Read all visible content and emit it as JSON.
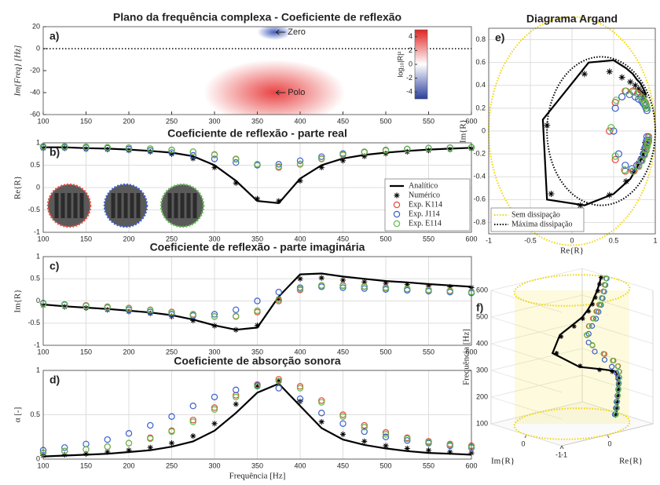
{
  "chart_data": [
    {
      "type": "heatmap",
      "title": "Plano da frequência complexa - Coeficiente de reflexão",
      "panel": "a)",
      "ylabel": "Im{Freq} [Hz]",
      "xlim": [
        100,
        600
      ],
      "xticks": [
        100,
        150,
        200,
        250,
        300,
        350,
        400,
        450,
        500,
        550,
        600
      ],
      "ylim": [
        -60,
        20
      ],
      "yticks": [
        -60,
        -40,
        -20,
        0,
        20
      ],
      "grid": false,
      "zero_line": true,
      "annotations": [
        {
          "text": "Zero",
          "x": 370,
          "y": 15,
          "color": "#3a55b8"
        },
        {
          "text": "Polo",
          "x": 370,
          "y": -40,
          "color": "#e83a3a"
        }
      ],
      "colorbar": {
        "label": "log₁₀|R|²",
        "lim": [
          -5,
          5
        ],
        "ticks": [
          4,
          2,
          0,
          -2,
          -4
        ],
        "colors": [
          "#2a3f9e",
          "#ffffff",
          "#e02424"
        ]
      }
    },
    {
      "type": "line",
      "title": "Coeficiente de reflexão - parte real",
      "panel": "b)",
      "ylabel": "Re{R}",
      "x": [
        100,
        125,
        150,
        175,
        200,
        225,
        250,
        275,
        300,
        325,
        350,
        375,
        400,
        425,
        450,
        475,
        500,
        525,
        550,
        575,
        600
      ],
      "xlim": [
        100,
        600
      ],
      "xticks": [
        100,
        150,
        200,
        250,
        300,
        350,
        400,
        450,
        500,
        550,
        600
      ],
      "ylim": [
        -1,
        1
      ],
      "yticks": [
        -1,
        -0.5,
        0,
        0.5,
        1
      ],
      "grid": true,
      "legend": "lower right",
      "series": [
        {
          "name": "Analítico",
          "color": "#000000",
          "style": "line",
          "values": [
            0.9,
            0.9,
            0.88,
            0.87,
            0.85,
            0.82,
            0.78,
            0.7,
            0.5,
            0.15,
            -0.3,
            -0.35,
            0.2,
            0.5,
            0.65,
            0.73,
            0.78,
            0.82,
            0.85,
            0.87,
            0.89
          ]
        },
        {
          "name": "Numérico",
          "color": "#000000",
          "style": "asterisk",
          "values": [
            0.88,
            0.88,
            0.86,
            0.85,
            0.83,
            0.8,
            0.75,
            0.65,
            0.45,
            0.1,
            -0.25,
            -0.3,
            0.15,
            0.45,
            0.6,
            0.7,
            0.76,
            0.8,
            0.83,
            0.85,
            0.87
          ]
        },
        {
          "name": "Exp. K114",
          "color": "#e8493a",
          "style": "circle",
          "values": [
            0.92,
            0.92,
            0.91,
            0.9,
            0.89,
            0.87,
            0.84,
            0.8,
            0.74,
            0.64,
            0.52,
            0.45,
            0.52,
            0.64,
            0.73,
            0.79,
            0.83,
            0.86,
            0.88,
            0.89,
            0.9
          ]
        },
        {
          "name": "Exp. J114",
          "color": "#3a5fcd",
          "style": "circle",
          "values": [
            0.9,
            0.9,
            0.89,
            0.88,
            0.86,
            0.83,
            0.78,
            0.72,
            0.64,
            0.56,
            0.5,
            0.52,
            0.6,
            0.69,
            0.76,
            0.8,
            0.84,
            0.86,
            0.88,
            0.89,
            0.9
          ]
        },
        {
          "name": "Exp. E114",
          "color": "#5cbf4a",
          "style": "circle",
          "values": [
            0.92,
            0.92,
            0.91,
            0.9,
            0.89,
            0.87,
            0.84,
            0.8,
            0.73,
            0.63,
            0.52,
            0.47,
            0.53,
            0.65,
            0.74,
            0.8,
            0.84,
            0.86,
            0.88,
            0.89,
            0.9
          ]
        }
      ]
    },
    {
      "type": "line",
      "title": "Coeficiente de reflexão - parte imaginária",
      "panel": "c)",
      "ylabel": "Im{R}",
      "x": [
        100,
        125,
        150,
        175,
        200,
        225,
        250,
        275,
        300,
        325,
        350,
        375,
        400,
        425,
        450,
        475,
        500,
        525,
        550,
        575,
        600
      ],
      "xlim": [
        100,
        600
      ],
      "xticks": [
        100,
        150,
        200,
        250,
        300,
        350,
        400,
        450,
        500,
        550,
        600
      ],
      "ylim": [
        -1,
        1
      ],
      "yticks": [
        -1,
        -0.5,
        0,
        0.5,
        1
      ],
      "grid": true,
      "series": [
        {
          "color": "#000000",
          "style": "line",
          "values": [
            -0.08,
            -0.12,
            -0.15,
            -0.18,
            -0.22,
            -0.26,
            -0.32,
            -0.42,
            -0.55,
            -0.65,
            -0.6,
            0.1,
            0.6,
            0.62,
            0.55,
            0.5,
            0.45,
            0.42,
            0.38,
            0.35,
            0.32
          ]
        },
        {
          "color": "#000000",
          "style": "asterisk",
          "values": [
            -0.1,
            -0.13,
            -0.16,
            -0.2,
            -0.24,
            -0.28,
            -0.35,
            -0.44,
            -0.56,
            -0.65,
            -0.55,
            0.05,
            0.5,
            0.52,
            0.47,
            0.43,
            0.4,
            0.37,
            0.34,
            0.32,
            0.3
          ]
        },
        {
          "color": "#e8493a",
          "style": "circle",
          "values": [
            -0.05,
            -0.08,
            -0.1,
            -0.13,
            -0.16,
            -0.2,
            -0.25,
            -0.3,
            -0.35,
            -0.35,
            -0.25,
            0,
            0.25,
            0.35,
            0.35,
            0.33,
            0.3,
            0.27,
            0.25,
            0.23,
            0.2
          ]
        },
        {
          "color": "#3a5fcd",
          "style": "circle",
          "values": [
            -0.05,
            -0.08,
            -0.11,
            -0.15,
            -0.2,
            -0.25,
            -0.3,
            -0.33,
            -0.3,
            -0.2,
            0,
            0.2,
            0.3,
            0.32,
            0.3,
            0.28,
            0.26,
            0.24,
            0.22,
            0.2,
            0.18
          ]
        },
        {
          "color": "#5cbf4a",
          "style": "circle",
          "values": [
            -0.06,
            -0.09,
            -0.11,
            -0.14,
            -0.17,
            -0.21,
            -0.26,
            -0.31,
            -0.35,
            -0.34,
            -0.22,
            0.03,
            0.27,
            0.35,
            0.34,
            0.32,
            0.29,
            0.27,
            0.24,
            0.22,
            0.2
          ]
        }
      ]
    },
    {
      "type": "line",
      "title": "Coeficiente de absorção sonora",
      "panel": "d)",
      "ylabel": "α [-]",
      "xlabel": "Frequência [Hz]",
      "x": [
        100,
        125,
        150,
        175,
        200,
        225,
        250,
        275,
        300,
        325,
        350,
        375,
        400,
        425,
        450,
        475,
        500,
        525,
        550,
        575,
        600
      ],
      "xlim": [
        100,
        600
      ],
      "xticks": [
        100,
        150,
        200,
        250,
        300,
        350,
        400,
        450,
        500,
        550,
        600
      ],
      "ylim": [
        0,
        1
      ],
      "yticks": [
        0,
        0.5,
        1
      ],
      "grid": true,
      "series": [
        {
          "color": "#000000",
          "style": "line",
          "values": [
            0.03,
            0.04,
            0.05,
            0.06,
            0.08,
            0.1,
            0.14,
            0.2,
            0.32,
            0.52,
            0.75,
            0.85,
            0.6,
            0.35,
            0.22,
            0.16,
            0.12,
            0.09,
            0.07,
            0.06,
            0.05
          ]
        },
        {
          "color": "#000000",
          "style": "asterisk",
          "values": [
            0.04,
            0.05,
            0.06,
            0.08,
            0.1,
            0.13,
            0.18,
            0.26,
            0.4,
            0.62,
            0.82,
            0.88,
            0.65,
            0.42,
            0.28,
            0.2,
            0.15,
            0.12,
            0.1,
            0.08,
            0.07
          ]
        },
        {
          "color": "#e8493a",
          "style": "circle",
          "values": [
            0.07,
            0.09,
            0.11,
            0.14,
            0.18,
            0.24,
            0.32,
            0.44,
            0.58,
            0.72,
            0.84,
            0.9,
            0.82,
            0.66,
            0.5,
            0.38,
            0.3,
            0.24,
            0.2,
            0.17,
            0.15
          ]
        },
        {
          "color": "#3a5fcd",
          "style": "circle",
          "values": [
            0.1,
            0.13,
            0.17,
            0.22,
            0.29,
            0.38,
            0.48,
            0.6,
            0.7,
            0.78,
            0.83,
            0.8,
            0.68,
            0.52,
            0.4,
            0.31,
            0.25,
            0.21,
            0.18,
            0.15,
            0.13
          ]
        },
        {
          "color": "#5cbf4a",
          "style": "circle",
          "values": [
            0.07,
            0.09,
            0.11,
            0.14,
            0.18,
            0.23,
            0.31,
            0.42,
            0.56,
            0.7,
            0.82,
            0.88,
            0.8,
            0.64,
            0.48,
            0.36,
            0.28,
            0.23,
            0.19,
            0.16,
            0.14
          ]
        }
      ]
    },
    {
      "type": "argand",
      "title": "Diagrama Argand",
      "panel": "e)",
      "xlabel": "Re{R}",
      "ylabel": "Im{R}",
      "xlim": [
        -1,
        1
      ],
      "xticks": [
        -1,
        -0.5,
        0,
        0.5,
        1
      ],
      "ylim": [
        -0.9,
        0.9
      ],
      "yticks": [
        -0.8,
        -0.6,
        -0.4,
        -0.2,
        0,
        0.2,
        0.4,
        0.6,
        0.8
      ],
      "grid": true,
      "legend": "lower left",
      "circles": [
        {
          "name": "Sem dissipação",
          "color": "#f2d600",
          "center": [
            0,
            0
          ],
          "radius": 1
        },
        {
          "name": "Máxima dissipação",
          "color": "#000000",
          "center": [
            0.35,
            0
          ],
          "radius": 0.65
        }
      ]
    },
    {
      "type": "3d",
      "panel": "f)",
      "xlabel": "Re{R}",
      "ylabel": "Im{R}",
      "zlabel": "Frequência [Hz]",
      "xlim": [
        -1,
        1
      ],
      "xticks": [
        -1,
        0
      ],
      "ylim": [
        -1,
        1
      ],
      "yticks": [
        -1,
        0
      ],
      "zlim": [
        100,
        600
      ],
      "zticks": [
        100,
        200,
        300,
        400,
        500,
        600
      ],
      "cylinder_color": "#f2d600"
    }
  ]
}
